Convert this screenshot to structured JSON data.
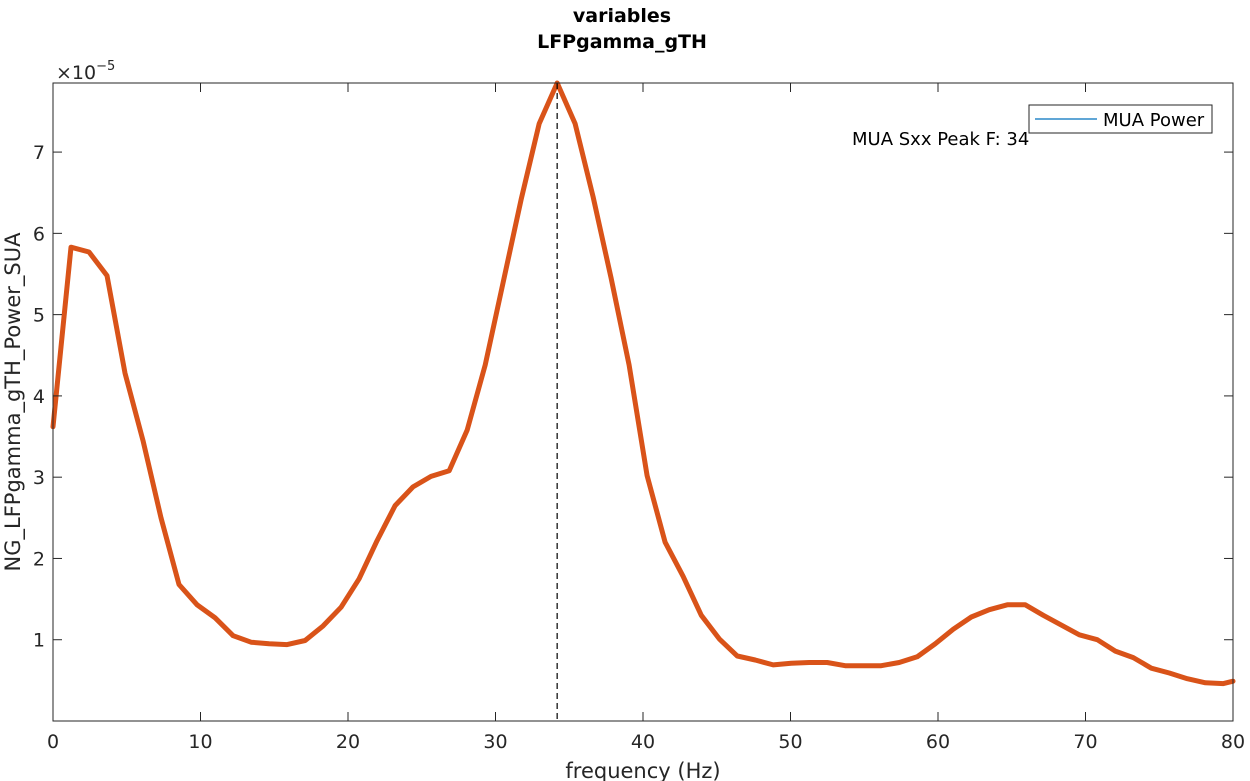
{
  "chart_data": {
    "type": "line",
    "title": "variables",
    "subtitle": "LFPgamma_gTH",
    "xlabel": "frequency (Hz)",
    "ylabel": "NG_LFPgamma_gTH_Power_SUA",
    "exponent_base": "×10",
    "exponent_power": "−5",
    "xlim": [
      0,
      80
    ],
    "ylim": [
      0,
      7.85
    ],
    "x_ticks": [
      0,
      10,
      20,
      30,
      40,
      50,
      60,
      70,
      80
    ],
    "y_ticks": [
      1,
      2,
      3,
      4,
      5,
      6,
      7
    ],
    "grid": false,
    "legend_position": "top-right",
    "series": [
      {
        "name": "MUA Power",
        "color": "#d95319",
        "legend_color": "#0072bd",
        "x": [
          0,
          1.22,
          2.44,
          3.66,
          4.88,
          6.1,
          7.32,
          8.54,
          9.77,
          10.99,
          12.21,
          13.43,
          14.65,
          15.87,
          17.09,
          18.31,
          19.53,
          20.75,
          21.97,
          23.19,
          24.41,
          25.63,
          26.86,
          28.08,
          29.3,
          30.52,
          31.74,
          32.96,
          34.18,
          35.4,
          36.62,
          37.84,
          39.06,
          40.28,
          41.5,
          42.72,
          43.95,
          45.17,
          46.39,
          47.61,
          48.83,
          50.05,
          51.27,
          52.49,
          53.71,
          54.93,
          56.15,
          57.37,
          58.59,
          59.81,
          61.04,
          62.26,
          63.48,
          64.7,
          65.92,
          67.14,
          68.36,
          69.58,
          70.8,
          72.02,
          73.24,
          74.46,
          75.68,
          76.9,
          78.13,
          79.35,
          80
        ],
        "y": [
          3.62,
          5.83,
          5.77,
          5.48,
          4.28,
          3.45,
          2.5,
          1.68,
          1.43,
          1.27,
          1.05,
          0.97,
          0.95,
          0.94,
          0.99,
          1.17,
          1.4,
          1.75,
          2.22,
          2.65,
          2.88,
          3.01,
          3.08,
          3.58,
          4.38,
          5.4,
          6.42,
          7.35,
          7.85,
          7.35,
          6.45,
          5.45,
          4.38,
          3.02,
          2.2,
          1.78,
          1.3,
          1.01,
          0.8,
          0.75,
          0.69,
          0.71,
          0.72,
          0.72,
          0.68,
          0.68,
          0.68,
          0.72,
          0.79,
          0.95,
          1.13,
          1.28,
          1.37,
          1.43,
          1.43,
          1.3,
          1.18,
          1.06,
          1.0,
          0.86,
          0.78,
          0.65,
          0.59,
          0.52,
          0.47,
          0.46,
          0.49
        ]
      }
    ],
    "peak_line_x": 34.18,
    "annotation": "MUA Sxx Peak F: 34"
  }
}
